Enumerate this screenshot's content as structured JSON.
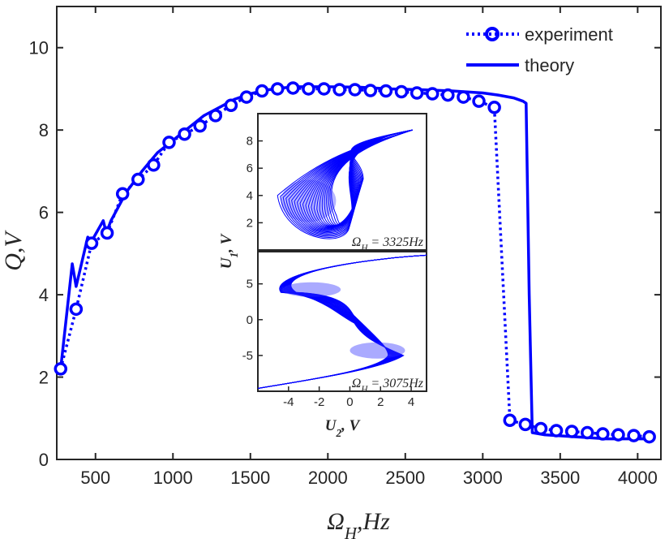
{
  "chart_data": [
    {
      "type": "line",
      "title": "",
      "xlabel": "ΩH,Hz",
      "ylabel": "Q,V",
      "xlim": [
        250,
        4150
      ],
      "ylim": [
        0,
        11
      ],
      "xticks": [
        "500",
        "1000",
        "1500",
        "2000",
        "2500",
        "3000",
        "3500",
        "4000"
      ],
      "yticks": [
        "0",
        "2",
        "4",
        "6",
        "8",
        "10"
      ],
      "legend_position": "top-right",
      "series": [
        {
          "name": "experiment",
          "style": "dotted line with circle markers",
          "color": "#0000ff",
          "x": [
            275,
            375,
            475,
            575,
            675,
            775,
            875,
            975,
            1075,
            1175,
            1275,
            1375,
            1475,
            1575,
            1675,
            1775,
            1875,
            1975,
            2075,
            2175,
            2275,
            2375,
            2475,
            2575,
            2675,
            2775,
            2875,
            2975,
            3075,
            3175,
            3275,
            3375,
            3475,
            3575,
            3675,
            3775,
            3875,
            3975,
            4075
          ],
          "y": [
            2.2,
            3.65,
            5.25,
            5.5,
            6.45,
            6.8,
            7.15,
            7.7,
            7.9,
            8.1,
            8.35,
            8.6,
            8.8,
            8.95,
            9.0,
            9.02,
            9.0,
            9.0,
            8.98,
            8.98,
            8.96,
            8.95,
            8.93,
            8.9,
            8.88,
            8.85,
            8.8,
            8.7,
            8.55,
            0.95,
            0.85,
            0.75,
            0.7,
            0.68,
            0.65,
            0.62,
            0.6,
            0.58,
            0.55
          ]
        },
        {
          "name": "theory",
          "style": "solid line",
          "color": "#0000ff",
          "x": [
            275,
            350,
            375,
            450,
            475,
            550,
            570,
            600,
            700,
            800,
            900,
            1000,
            1100,
            1200,
            1300,
            1400,
            1500,
            1600,
            1700,
            1800,
            1900,
            2000,
            2200,
            2400,
            2600,
            2800,
            3000,
            3100,
            3200,
            3260,
            3280,
            3300,
            3320,
            3400,
            3600,
            3800,
            4000,
            4100
          ],
          "y": [
            2.2,
            4.75,
            4.2,
            5.4,
            5.3,
            5.8,
            5.5,
            5.8,
            6.5,
            7.0,
            7.45,
            7.75,
            8.05,
            8.35,
            8.55,
            8.75,
            8.88,
            8.97,
            9.02,
            9.05,
            9.05,
            9.05,
            9.04,
            9.0,
            8.98,
            8.95,
            8.9,
            8.85,
            8.78,
            8.7,
            8.65,
            4.0,
            0.65,
            0.6,
            0.55,
            0.5,
            0.5,
            0.5
          ]
        }
      ]
    },
    {
      "type": "line",
      "title": "",
      "panel": "inset-top",
      "xlim": [
        -6,
        6
      ],
      "ylim": [
        0,
        10
      ],
      "yticks": [
        "2",
        "4",
        "6",
        "8"
      ],
      "annotation": "ΩH = 3325Hz",
      "description_points": "phase portrait U1 vs U2, dense closed orbits"
    },
    {
      "type": "line",
      "title": "",
      "panel": "inset-bottom",
      "xlabel": "U2, V",
      "ylabel": "U1, V",
      "xlim": [
        -6,
        5
      ],
      "ylim": [
        -10,
        9.5
      ],
      "xticks": [
        "-4",
        "-2",
        "0",
        "2",
        "4"
      ],
      "yticks": [
        "5",
        "0",
        "-5"
      ],
      "annotation": "ΩH = 3075Hz",
      "description_points": "phase portrait U1 vs U2, figure-eight orbits"
    }
  ]
}
